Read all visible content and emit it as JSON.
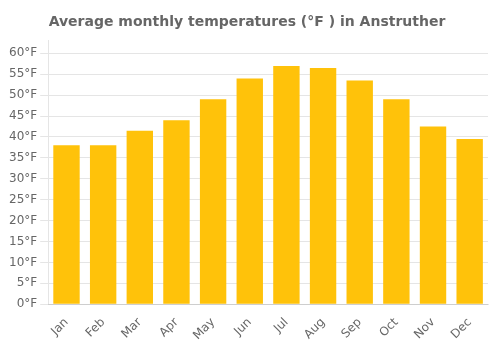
{
  "chart_data": {
    "type": "bar",
    "title": "Average monthly temperatures (°F ) in Anstruther",
    "categories": [
      "Jan",
      "Feb",
      "Mar",
      "Apr",
      "May",
      "Jun",
      "Jul",
      "Aug",
      "Sep",
      "Oct",
      "Nov",
      "Dec"
    ],
    "values": [
      38,
      38,
      41.5,
      44,
      49,
      54,
      57,
      56.5,
      53.5,
      49,
      42.5,
      39.5
    ],
    "color": "#FFC20A",
    "ylim": [
      0,
      63
    ],
    "yticks": [
      {
        "value": 0,
        "label": "0°F"
      },
      {
        "value": 5,
        "label": "5°F"
      },
      {
        "value": 10,
        "label": "10°F"
      },
      {
        "value": 15,
        "label": "15°F"
      },
      {
        "value": 20,
        "label": "20°F"
      },
      {
        "value": 25,
        "label": "25°F"
      },
      {
        "value": 30,
        "label": "30°F"
      },
      {
        "value": 35,
        "label": "35°F"
      },
      {
        "value": 40,
        "label": "40°F"
      },
      {
        "value": 45,
        "label": "45°F"
      },
      {
        "value": 50,
        "label": "50°F"
      },
      {
        "value": 55,
        "label": "55°F"
      },
      {
        "value": 60,
        "label": "60°F"
      }
    ],
    "grid": true
  }
}
